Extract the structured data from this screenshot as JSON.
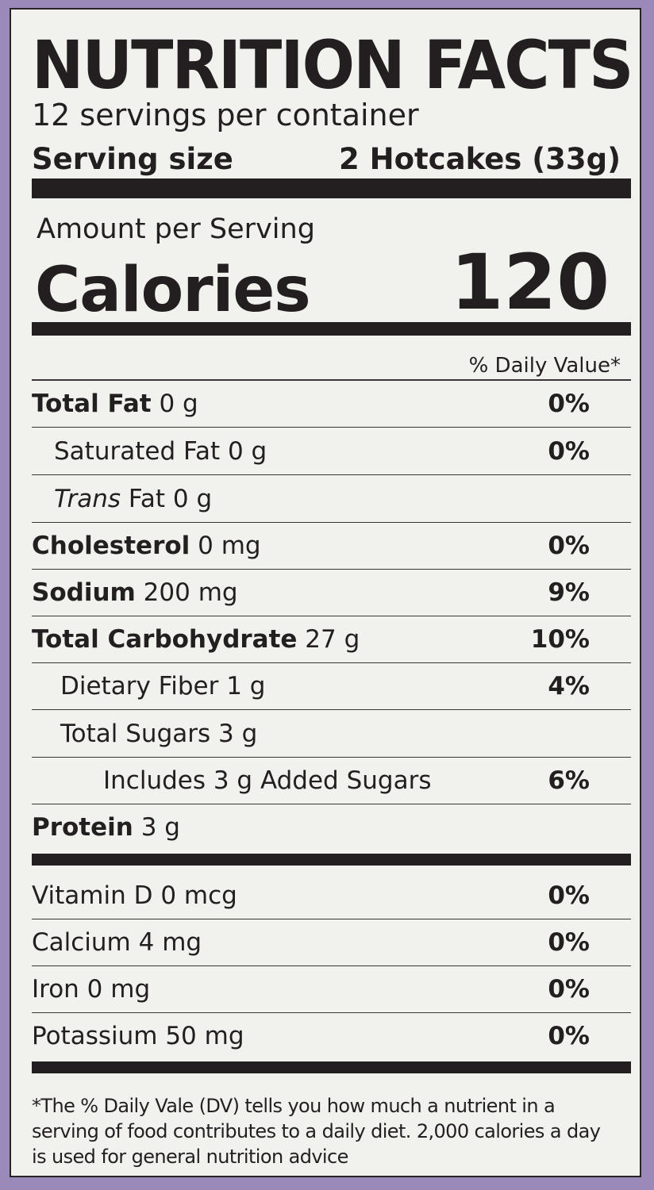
{
  "title": "NUTRITION FACTS",
  "servings_per_container": "12 servings per container",
  "serving_size_label": "Serving size",
  "serving_size_value": "2 Hotcakes (33g)",
  "amount_per_serving": "Amount per Serving",
  "calories_label": "Calories",
  "calories_value": "120",
  "daily_value_header": "% Daily Value*",
  "nutrients": [
    {
      "name": "Total Fat",
      "amount": " 0 g",
      "dv": "0%"
    },
    {
      "name": "Saturated Fat 0 g",
      "amount": "",
      "dv": "0%"
    },
    {
      "name": "Trans",
      "amount": " Fat 0 g",
      "dv": ""
    },
    {
      "name": "Cholesterol",
      "amount": " 0 mg",
      "dv": "0%"
    },
    {
      "name": "Sodium",
      "amount": " 200 mg",
      "dv": "9%"
    },
    {
      "name": "Total Carbohydrate",
      "amount": " 27 g",
      "dv": "10%"
    },
    {
      "name": "Dietary Fiber 1 g",
      "amount": "",
      "dv": "4%"
    },
    {
      "name": "Total Sugars 3 g",
      "amount": "",
      "dv": ""
    },
    {
      "name": "Includes 3 g Added Sugars",
      "amount": "",
      "dv": "6%"
    },
    {
      "name": "Protein",
      "amount": " 3 g",
      "dv": ""
    }
  ],
  "vitamins": [
    {
      "name": "Vitamin D 0 mcg",
      "dv": "0%"
    },
    {
      "name": "Calcium 4 mg",
      "dv": "0%"
    },
    {
      "name": "Iron 0 mg",
      "dv": "0%"
    },
    {
      "name": "Potassium 50 mg",
      "dv": "0%"
    }
  ],
  "footnote": "*The % Daily Vale (DV) tells you how much a nutrient in a serving of food contributes to a daily diet. 2,000 calories a day is used for general nutrition advice",
  "colors": {
    "background": "#9a8ab9",
    "label": "#f1f1ed",
    "ink": "#231f20"
  }
}
